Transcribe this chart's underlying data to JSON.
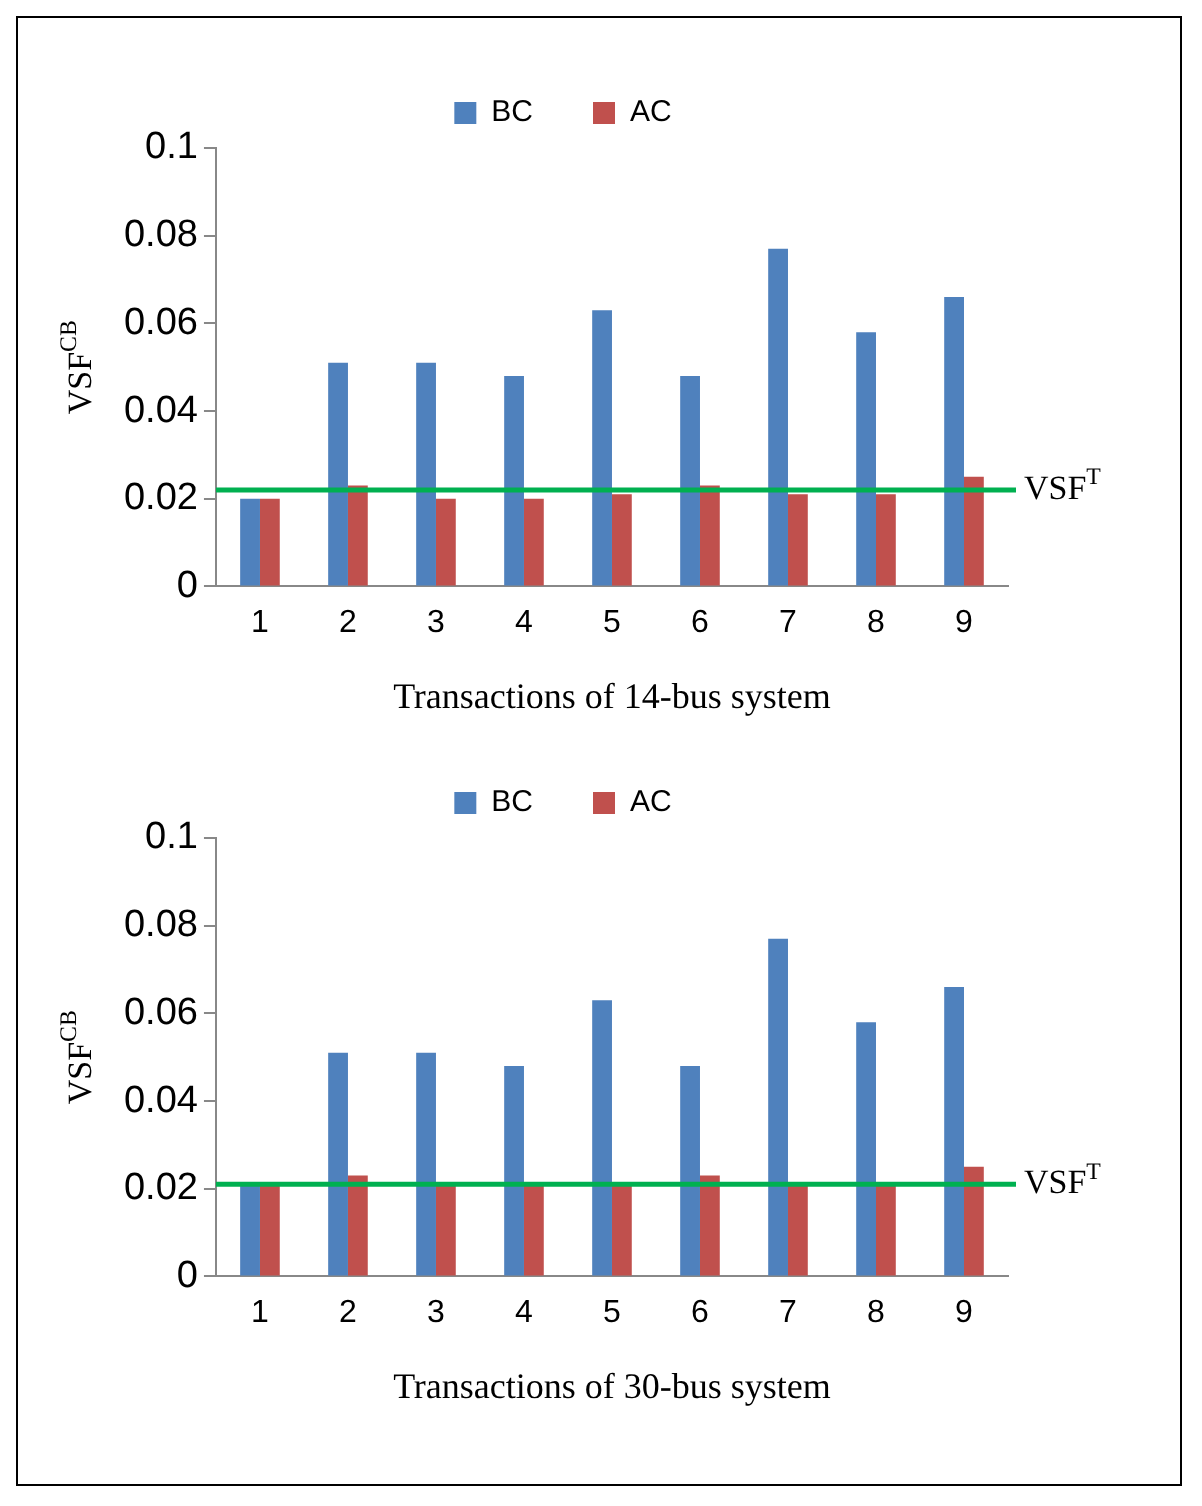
{
  "chart_data": [
    {
      "type": "bar",
      "xlabel": "Transactions of 14-bus system",
      "ylabel": "VSF$^{CB}$",
      "categories": [
        "1",
        "2",
        "3",
        "4",
        "5",
        "6",
        "7",
        "8",
        "9"
      ],
      "series": [
        {
          "name": "BC",
          "color": "#4f81bd",
          "values": [
            0.02,
            0.051,
            0.051,
            0.048,
            0.063,
            0.048,
            0.077,
            0.058,
            0.066
          ]
        },
        {
          "name": "AC",
          "color": "#c0504d",
          "values": [
            0.02,
            0.023,
            0.02,
            0.02,
            0.021,
            0.023,
            0.021,
            0.021,
            0.025
          ]
        }
      ],
      "ylim": [
        0,
        0.1
      ],
      "yticks": [
        0,
        0.02,
        0.04,
        0.06,
        0.08,
        0.1
      ],
      "grid": false,
      "legend": "top",
      "ref_lines": [
        {
          "axis": "y",
          "value": 0.022,
          "label": "VSF$^{T}$",
          "color": "#00b050"
        }
      ]
    },
    {
      "type": "bar",
      "xlabel": "Transactions of 30-bus system",
      "ylabel": "VSF$^{CB}$",
      "categories": [
        "1",
        "2",
        "3",
        "4",
        "5",
        "6",
        "7",
        "8",
        "9"
      ],
      "series": [
        {
          "name": "BC",
          "color": "#4f81bd",
          "values": [
            0.021,
            0.051,
            0.051,
            0.048,
            0.063,
            0.048,
            0.077,
            0.058,
            0.066
          ]
        },
        {
          "name": "AC",
          "color": "#c0504d",
          "values": [
            0.021,
            0.023,
            0.021,
            0.021,
            0.021,
            0.023,
            0.021,
            0.021,
            0.025
          ]
        }
      ],
      "ylim": [
        0,
        0.1
      ],
      "yticks": [
        0,
        0.02,
        0.04,
        0.06,
        0.08,
        0.1
      ],
      "grid": false,
      "legend": "top",
      "ref_lines": [
        {
          "axis": "y",
          "value": 0.021,
          "label": "VSF$^{T}$",
          "color": "#00b050"
        }
      ]
    }
  ]
}
